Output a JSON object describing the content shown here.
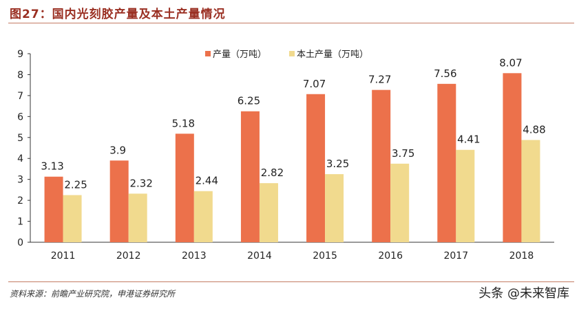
{
  "header": {
    "title": "图27：国内光刻胶产量及本土产量情况"
  },
  "footer": {
    "source": "资料来源：前瞻产业研究院，申港证券研究所",
    "watermark": "头条 @未来智库"
  },
  "chart_data": {
    "type": "bar",
    "categories": [
      "2011",
      "2012",
      "2013",
      "2014",
      "2015",
      "2016",
      "2017",
      "2018"
    ],
    "series": [
      {
        "name": "产量（万吨）",
        "color": "#ec714b",
        "values": [
          3.13,
          3.9,
          5.18,
          6.25,
          7.07,
          7.27,
          7.56,
          8.07
        ]
      },
      {
        "name": "本土产量（万吨）",
        "color": "#f1da8e",
        "values": [
          2.25,
          2.32,
          2.44,
          2.82,
          3.25,
          3.75,
          4.41,
          4.88
        ]
      }
    ],
    "value_labels": [
      [
        "3.13",
        "3.9",
        "5.18",
        "6.25",
        "7.07",
        "7.27",
        "7.56",
        "8.07"
      ],
      [
        "2.25",
        "2.32",
        "2.44",
        "2.82",
        "3.25",
        "3.75",
        "4.41",
        "4.88"
      ]
    ],
    "yticks": [
      "0",
      "1",
      "2",
      "3",
      "4",
      "5",
      "6",
      "7",
      "8",
      "9"
    ],
    "ylim": [
      0,
      9
    ],
    "grid": false,
    "legend": "top"
  }
}
